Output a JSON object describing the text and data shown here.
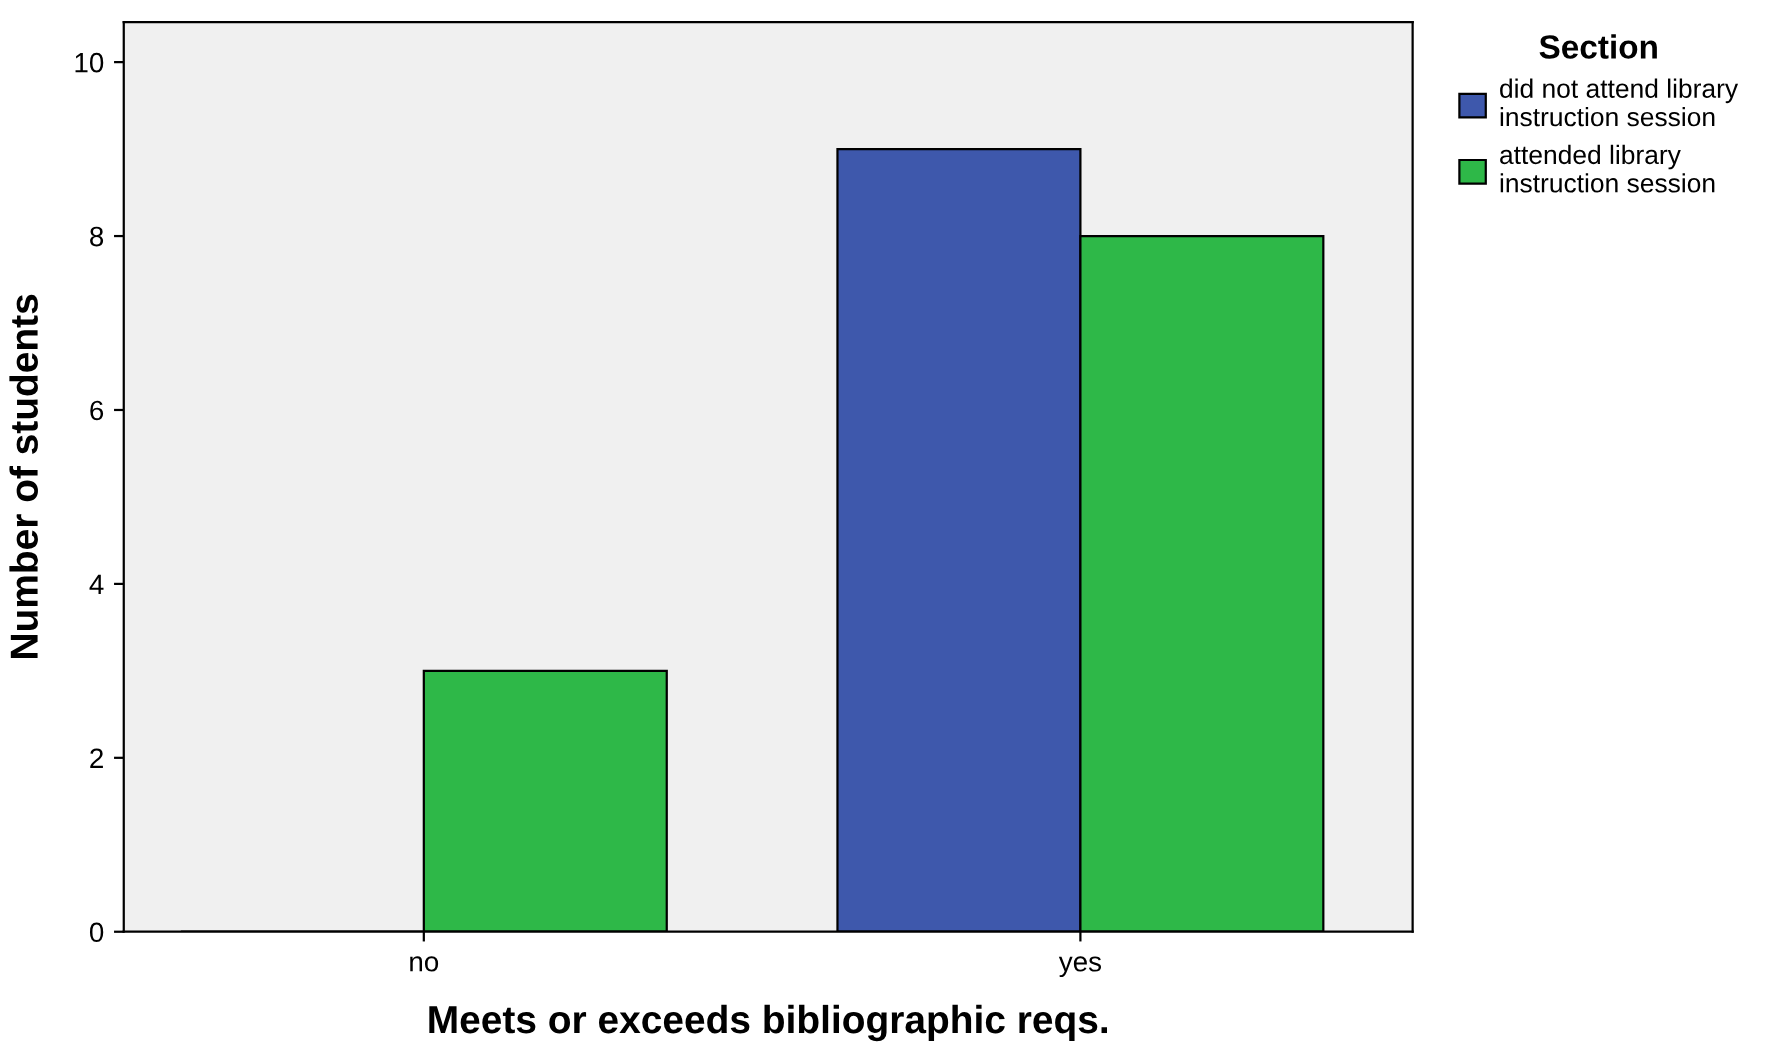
{
  "chart_data": {
    "type": "bar",
    "xlabel": "Meets or exceeds bibliographic reqs.",
    "ylabel": "Number of students",
    "legend_title": "Section",
    "categories": [
      "no",
      "yes"
    ],
    "series": [
      {
        "name": "did not attend library\ninstruction session",
        "color": "#3e58ac",
        "values": [
          0,
          9
        ]
      },
      {
        "name": "attended library\ninstruction session",
        "color": "#2eb848",
        "values": [
          3,
          8
        ]
      }
    ],
    "ylim": [
      0,
      10.46
    ],
    "yticks": [
      0,
      2,
      4,
      6,
      8,
      10
    ],
    "grid": false,
    "legend": "top right"
  }
}
